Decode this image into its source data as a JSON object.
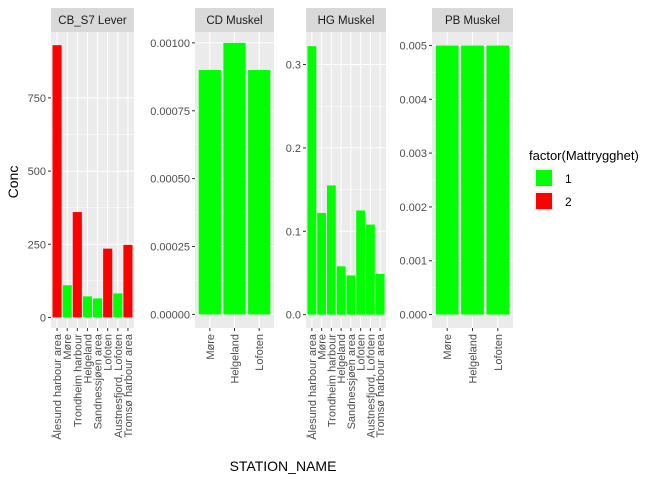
{
  "chart_data": {
    "type": "bar",
    "xlabel": "STATION_NAME",
    "ylabel": "Conc",
    "legend": {
      "title": "factor(Mattrygghet)",
      "placement": "right",
      "entries": [
        {
          "label": "1",
          "color": "#00FF00"
        },
        {
          "label": "2",
          "color": "#FF0000"
        }
      ]
    },
    "colors": {
      "1": "#00FF00",
      "2": "#FF0000"
    },
    "panel_background": "#EBEBEB",
    "strip_background": "#D9D9D9",
    "grid": true,
    "facets": [
      {
        "title": "CB_S7 Lever",
        "ylim": [
          -36,
          975
        ],
        "yticks": [
          0,
          250,
          500,
          750
        ],
        "ytick_labels": [
          "0",
          "250",
          "500",
          "750"
        ],
        "categories": [
          "Ålesund harbour area",
          "Møre",
          "Trondheim harbour",
          "Helgeland",
          "Sandnessjøen area",
          "Lofoten",
          "Austnesfjord, Lofoten",
          "Tromsø harbour area"
        ],
        "values": [
          930,
          110,
          360,
          72,
          65,
          235,
          82,
          248
        ],
        "groups": [
          "2",
          "1",
          "2",
          "1",
          "1",
          "2",
          "1",
          "2"
        ]
      },
      {
        "title": "CD Muskel",
        "ylim": [
          -5e-05,
          0.00104
        ],
        "yticks": [
          0,
          0.00025,
          0.0005,
          0.00075,
          0.001
        ],
        "ytick_labels": [
          "0.00000",
          "0.00025",
          "0.00050",
          "0.00075",
          "0.00100"
        ],
        "categories": [
          "Møre",
          "Helgeland",
          "Lofoten"
        ],
        "values": [
          0.0009,
          0.001,
          0.0009
        ],
        "groups": [
          "1",
          "1",
          "1"
        ]
      },
      {
        "title": "HG Muskel",
        "ylim": [
          -0.016,
          0.339
        ],
        "yticks": [
          0,
          0.1,
          0.2,
          0.3
        ],
        "ytick_labels": [
          "0.0",
          "0.1",
          "0.2",
          "0.3"
        ],
        "categories": [
          "Ålesund harbour area",
          "Møre",
          "Trondheim harbour",
          "Helgeland",
          "Sandnessjøen area",
          "Lofoten",
          "Austnesfjord, Lofoten",
          "Tromsø harbour area"
        ],
        "values": [
          0.322,
          0.122,
          0.155,
          0.058,
          0.047,
          0.125,
          0.108,
          0.049
        ],
        "groups": [
          "1",
          "1",
          "1",
          "1",
          "1",
          "1",
          "1",
          "1"
        ]
      },
      {
        "title": "PB Muskel",
        "ylim": [
          -0.00025,
          0.00525
        ],
        "yticks": [
          0,
          0.001,
          0.002,
          0.003,
          0.004,
          0.005
        ],
        "ytick_labels": [
          "0.000",
          "0.001",
          "0.002",
          "0.003",
          "0.004",
          "0.005"
        ],
        "categories": [
          "Møre",
          "Helgeland",
          "Lofoten"
        ],
        "values": [
          0.005,
          0.005,
          0.005
        ],
        "groups": [
          "1",
          "1",
          "1"
        ]
      }
    ]
  }
}
